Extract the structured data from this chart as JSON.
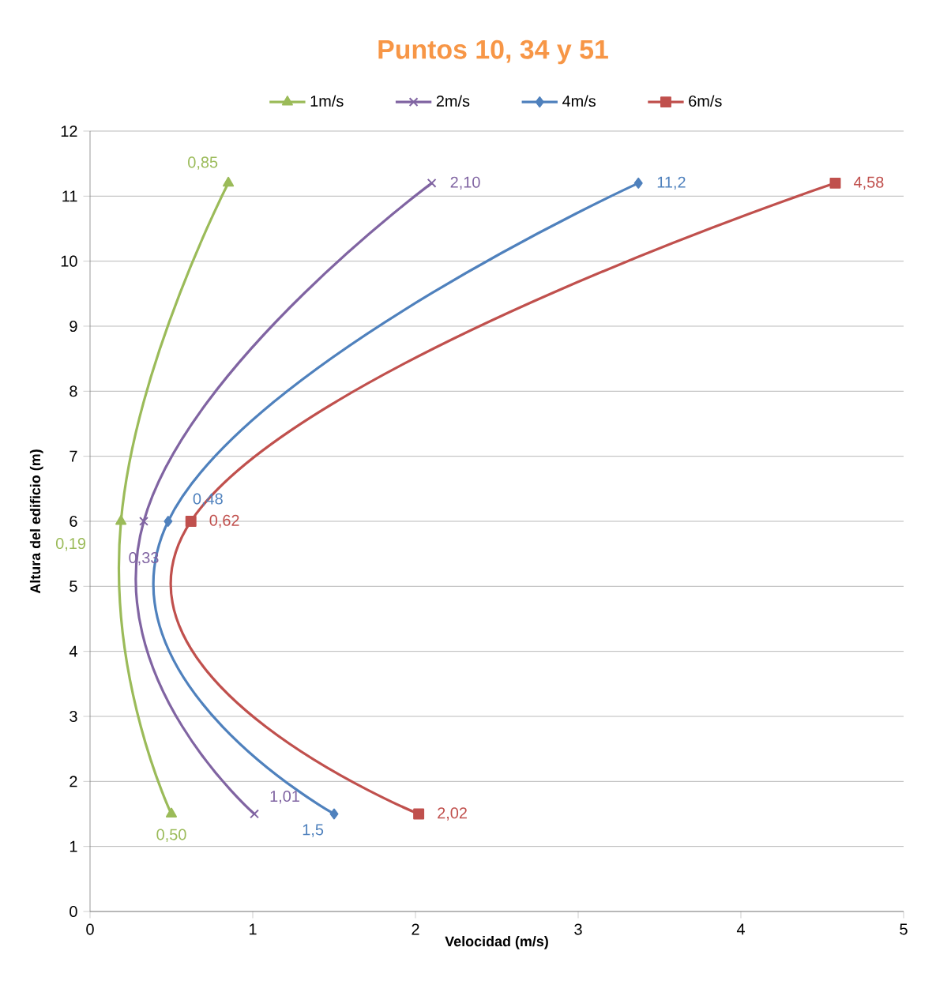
{
  "chart_data": {
    "type": "line",
    "title": "Puntos 10, 34 y 51",
    "xlabel": "Velocidad (m/s)",
    "ylabel": "Altura del edificio (m)",
    "xlim": [
      0,
      5
    ],
    "xticks": [
      0,
      1,
      2,
      3,
      4,
      5
    ],
    "ylim": [
      0,
      12
    ],
    "yticks": [
      0,
      1,
      2,
      3,
      4,
      5,
      6,
      7,
      8,
      9,
      10,
      11,
      12
    ],
    "grid": "y",
    "legend": "top",
    "series": [
      {
        "name": "1m/s",
        "color": "#9bbb59",
        "marker": "triangle",
        "x": [
          0.5,
          0.19,
          0.85
        ],
        "values": [
          1.5,
          6,
          11.2
        ]
      },
      {
        "name": "2m/s",
        "color": "#8064a2",
        "marker": "cross",
        "x": [
          1.01,
          0.33,
          2.1
        ],
        "values": [
          1.5,
          6,
          11.2
        ]
      },
      {
        "name": "4m/s",
        "color": "#4f81bd",
        "marker": "diamond",
        "x": [
          1.5,
          0.48,
          3.37
        ],
        "values": [
          1.5,
          6,
          11.2
        ]
      },
      {
        "name": "6m/s",
        "color": "#c0504d",
        "marker": "square",
        "x": [
          2.02,
          0.62,
          4.58
        ],
        "values": [
          1.5,
          6,
          11.2
        ]
      }
    ],
    "annotations": [
      {
        "text": "0,50",
        "x": 0.5,
        "y": 1.5
      },
      {
        "text": "0,19",
        "x": 0.19,
        "y": 6
      },
      {
        "text": "0,85",
        "x": 0.85,
        "y": 11.2
      },
      {
        "text": "1,01",
        "x": 1.01,
        "y": 1.5
      },
      {
        "text": "0,33",
        "x": 0.33,
        "y": 6
      },
      {
        "text": "2,10",
        "x": 2.1,
        "y": 11.2
      },
      {
        "text": "1,5",
        "x": 1.5,
        "y": 1.5
      },
      {
        "text": "0,48",
        "x": 0.48,
        "y": 6
      },
      {
        "text": "11,2",
        "x": 3.37,
        "y": 11.2
      },
      {
        "text": "2,02",
        "x": 2.02,
        "y": 1.5
      },
      {
        "text": "0,62",
        "x": 0.62,
        "y": 6
      },
      {
        "text": "4,58",
        "x": 4.58,
        "y": 11.2
      }
    ]
  }
}
